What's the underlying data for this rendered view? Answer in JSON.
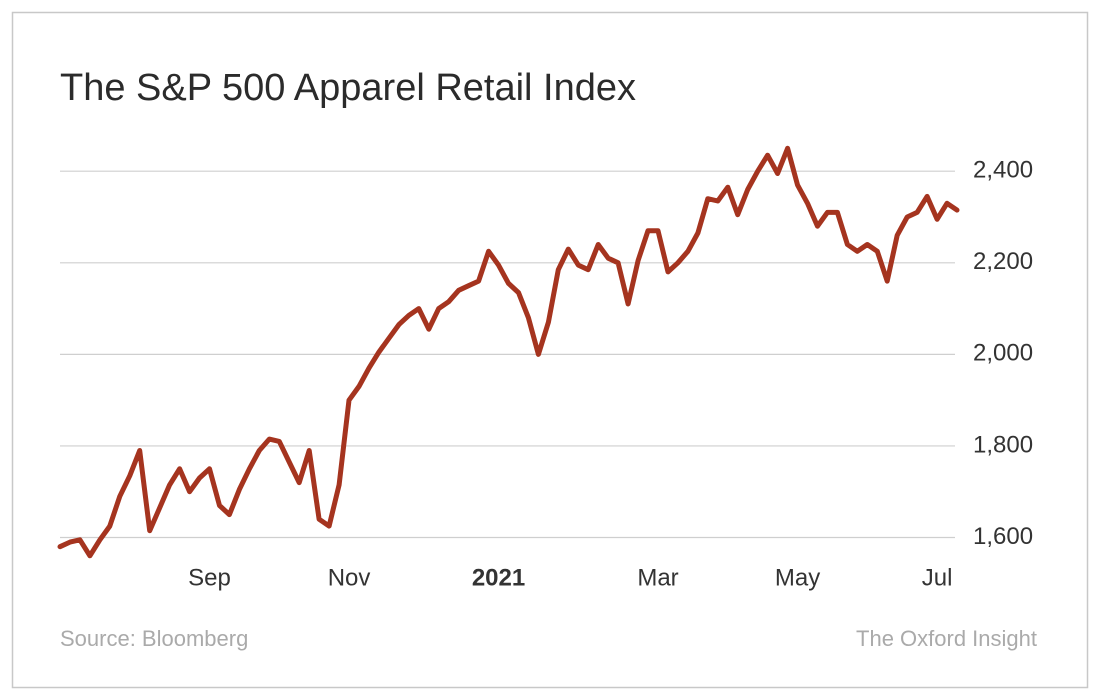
{
  "chart_data": {
    "type": "line",
    "title": "The S&P 500 Apparel Retail Index",
    "categories": [
      null,
      null,
      null,
      null,
      null,
      null,
      null,
      null,
      null,
      null,
      null,
      null,
      null,
      null,
      null,
      "Sep",
      null,
      null,
      null,
      null,
      null,
      null,
      null,
      null,
      null,
      null,
      null,
      null,
      null,
      "Nov",
      null,
      null,
      null,
      null,
      null,
      null,
      null,
      null,
      null,
      null,
      null,
      null,
      null,
      null,
      "2021",
      null,
      null,
      null,
      null,
      null,
      null,
      null,
      null,
      null,
      null,
      null,
      null,
      null,
      null,
      null,
      "Mar",
      null,
      null,
      null,
      null,
      null,
      null,
      null,
      null,
      null,
      null,
      null,
      null,
      null,
      "May",
      null,
      null,
      null,
      null,
      null,
      null,
      null,
      null,
      null,
      null,
      null,
      null,
      null,
      "Jul",
      null,
      null
    ],
    "values": [
      1580,
      1590,
      1595,
      1560,
      1595,
      1625,
      1690,
      1735,
      1790,
      1615,
      1665,
      1715,
      1750,
      1700,
      1730,
      1750,
      1670,
      1650,
      1705,
      1750,
      1790,
      1815,
      1810,
      1765,
      1720,
      1790,
      1640,
      1625,
      1715,
      1900,
      1930,
      1970,
      2005,
      2035,
      2065,
      2085,
      2100,
      2055,
      2100,
      2115,
      2140,
      2150,
      2160,
      2225,
      2195,
      2155,
      2135,
      2080,
      2000,
      2070,
      2185,
      2230,
      2195,
      2185,
      2240,
      2210,
      2200,
      2110,
      2205,
      2270,
      2270,
      2180,
      2200,
      2225,
      2265,
      2340,
      2335,
      2365,
      2305,
      2360,
      2400,
      2435,
      2395,
      2450,
      2370,
      2330,
      2280,
      2310,
      2310,
      2240,
      2225,
      2240,
      2225,
      2160,
      2260,
      2300,
      2310,
      2345,
      2295,
      2330,
      2315
    ],
    "color": "#a5341f",
    "ylim": [
      1540,
      2490
    ],
    "yticks": [
      {
        "value": 1600,
        "label": "1,600"
      },
      {
        "value": 1800,
        "label": "1,800"
      },
      {
        "value": 2000,
        "label": "2,000"
      },
      {
        "value": 2200,
        "label": "2,200"
      },
      {
        "value": 2400,
        "label": "2,400"
      }
    ],
    "grid": true,
    "source": "Source: Bloomberg",
    "credit": "The Oxford Insight"
  }
}
